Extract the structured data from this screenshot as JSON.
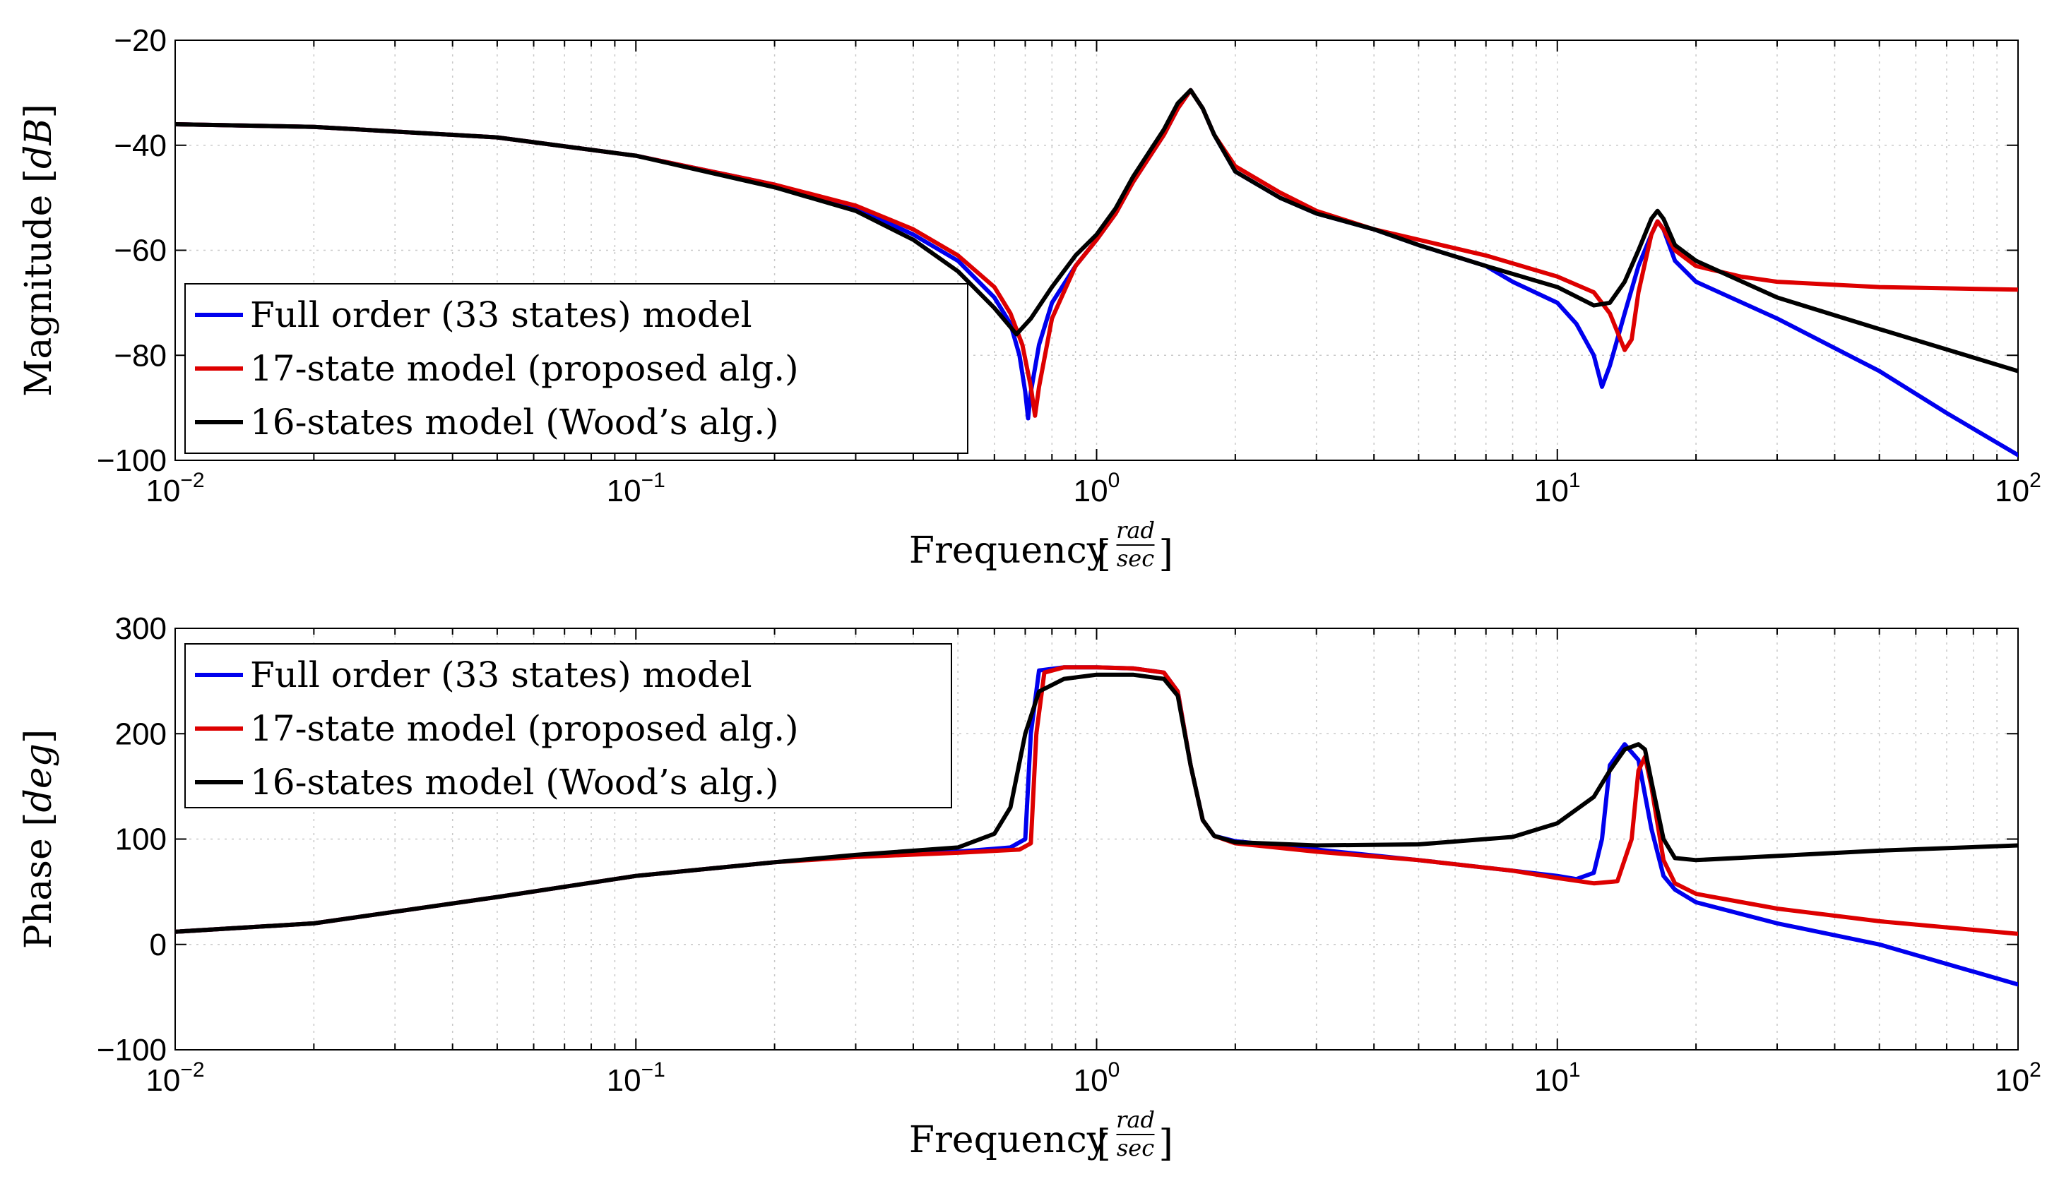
{
  "chart_data": [
    {
      "type": "line",
      "id": "magnitude",
      "xlabel": "Frequency",
      "xunit": {
        "num": "rad",
        "den": "sec"
      },
      "ylabel": "Magnitude",
      "yunit": "dB",
      "xscale": "log",
      "xlim": [
        0.01,
        100
      ],
      "ylim": [
        -100,
        -20
      ],
      "xticks": [
        0.01,
        0.1,
        1,
        10,
        100
      ],
      "xtick_labels": [
        {
          "base": "10",
          "exp": "−2"
        },
        {
          "base": "10",
          "exp": "−1"
        },
        {
          "base": "10",
          "exp": "0"
        },
        {
          "base": "10",
          "exp": "1"
        },
        {
          "base": "10",
          "exp": "2"
        }
      ],
      "yticks": [
        -100,
        -80,
        -60,
        -40,
        -20
      ],
      "ytick_labels": [
        "−100",
        "−80",
        "−60",
        "−40",
        "−20"
      ],
      "grid": true,
      "legend_position": "lower-left",
      "series": [
        {
          "name": "Full order (33 states) model",
          "color": "#0000ee",
          "points": [
            [
              0.01,
              -36
            ],
            [
              0.02,
              -36.5
            ],
            [
              0.05,
              -38.5
            ],
            [
              0.1,
              -42
            ],
            [
              0.2,
              -47.5
            ],
            [
              0.3,
              -52
            ],
            [
              0.4,
              -57
            ],
            [
              0.5,
              -62
            ],
            [
              0.6,
              -69
            ],
            [
              0.65,
              -74
            ],
            [
              0.68,
              -80
            ],
            [
              0.7,
              -87
            ],
            [
              0.71,
              -92
            ],
            [
              0.72,
              -87
            ],
            [
              0.75,
              -78
            ],
            [
              0.8,
              -70
            ],
            [
              0.9,
              -63
            ],
            [
              1.0,
              -58
            ],
            [
              1.1,
              -53
            ],
            [
              1.2,
              -47
            ],
            [
              1.4,
              -38
            ],
            [
              1.5,
              -33
            ],
            [
              1.6,
              -29.5
            ],
            [
              1.7,
              -33
            ],
            [
              1.8,
              -38
            ],
            [
              2.0,
              -45
            ],
            [
              2.5,
              -50
            ],
            [
              3,
              -53
            ],
            [
              4,
              -56
            ],
            [
              5,
              -59
            ],
            [
              7,
              -63
            ],
            [
              8,
              -66
            ],
            [
              10,
              -70
            ],
            [
              11,
              -74
            ],
            [
              12,
              -80
            ],
            [
              12.5,
              -86
            ],
            [
              13,
              -82
            ],
            [
              14,
              -72
            ],
            [
              15,
              -63
            ],
            [
              16,
              -57
            ],
            [
              16.5,
              -54.5
            ],
            [
              17,
              -56
            ],
            [
              18,
              -62
            ],
            [
              20,
              -66
            ],
            [
              30,
              -73
            ],
            [
              50,
              -83
            ],
            [
              70,
              -91
            ],
            [
              100,
              -99
            ]
          ]
        },
        {
          "name": "17-state model (proposed alg.)",
          "color": "#dd0000",
          "points": [
            [
              0.01,
              -36
            ],
            [
              0.02,
              -36.5
            ],
            [
              0.05,
              -38.5
            ],
            [
              0.1,
              -42
            ],
            [
              0.2,
              -47.5
            ],
            [
              0.3,
              -51.5
            ],
            [
              0.4,
              -56
            ],
            [
              0.5,
              -61
            ],
            [
              0.6,
              -67
            ],
            [
              0.65,
              -72
            ],
            [
              0.69,
              -78
            ],
            [
              0.72,
              -86
            ],
            [
              0.735,
              -91.5
            ],
            [
              0.75,
              -86
            ],
            [
              0.8,
              -73
            ],
            [
              0.9,
              -63
            ],
            [
              1.0,
              -58
            ],
            [
              1.1,
              -53
            ],
            [
              1.2,
              -47
            ],
            [
              1.4,
              -38
            ],
            [
              1.5,
              -33
            ],
            [
              1.6,
              -29.5
            ],
            [
              1.7,
              -33
            ],
            [
              1.8,
              -38
            ],
            [
              2.0,
              -44
            ],
            [
              2.5,
              -49
            ],
            [
              3,
              -52.5
            ],
            [
              4,
              -56
            ],
            [
              5,
              -58
            ],
            [
              7,
              -61
            ],
            [
              10,
              -65
            ],
            [
              12,
              -68
            ],
            [
              13,
              -72
            ],
            [
              14,
              -79
            ],
            [
              14.5,
              -77
            ],
            [
              15,
              -68
            ],
            [
              16,
              -57
            ],
            [
              16.5,
              -54.5
            ],
            [
              17,
              -56
            ],
            [
              18,
              -60
            ],
            [
              20,
              -63
            ],
            [
              25,
              -65
            ],
            [
              30,
              -66
            ],
            [
              50,
              -67
            ],
            [
              100,
              -67.5
            ]
          ]
        },
        {
          "name": "16-states model (Wood’s alg.)",
          "color": "#000000",
          "points": [
            [
              0.01,
              -36
            ],
            [
              0.02,
              -36.5
            ],
            [
              0.05,
              -38.5
            ],
            [
              0.1,
              -42
            ],
            [
              0.2,
              -48
            ],
            [
              0.3,
              -52.5
            ],
            [
              0.4,
              -58
            ],
            [
              0.5,
              -64
            ],
            [
              0.6,
              -71
            ],
            [
              0.67,
              -76
            ],
            [
              0.72,
              -73
            ],
            [
              0.8,
              -67
            ],
            [
              0.9,
              -61
            ],
            [
              1.0,
              -57
            ],
            [
              1.1,
              -52
            ],
            [
              1.2,
              -46
            ],
            [
              1.4,
              -37
            ],
            [
              1.5,
              -32
            ],
            [
              1.6,
              -29.5
            ],
            [
              1.7,
              -33
            ],
            [
              1.8,
              -38
            ],
            [
              2.0,
              -45
            ],
            [
              2.5,
              -50
            ],
            [
              3,
              -53
            ],
            [
              4,
              -56
            ],
            [
              5,
              -59
            ],
            [
              7,
              -63
            ],
            [
              10,
              -67
            ],
            [
              12,
              -70.5
            ],
            [
              13,
              -70
            ],
            [
              14,
              -66
            ],
            [
              15,
              -60
            ],
            [
              16,
              -54
            ],
            [
              16.5,
              -52.5
            ],
            [
              17,
              -54
            ],
            [
              18,
              -59
            ],
            [
              20,
              -62
            ],
            [
              30,
              -69
            ],
            [
              50,
              -75
            ],
            [
              100,
              -83
            ]
          ]
        }
      ]
    },
    {
      "type": "line",
      "id": "phase",
      "xlabel": "Frequency",
      "xunit": {
        "num": "rad",
        "den": "sec"
      },
      "ylabel": "Phase",
      "yunit": "deg",
      "xscale": "log",
      "xlim": [
        0.01,
        100
      ],
      "ylim": [
        -100,
        300
      ],
      "xticks": [
        0.01,
        0.1,
        1,
        10,
        100
      ],
      "xtick_labels": [
        {
          "base": "10",
          "exp": "−2"
        },
        {
          "base": "10",
          "exp": "−1"
        },
        {
          "base": "10",
          "exp": "0"
        },
        {
          "base": "10",
          "exp": "1"
        },
        {
          "base": "10",
          "exp": "2"
        }
      ],
      "yticks": [
        -100,
        0,
        100,
        200,
        300
      ],
      "ytick_labels": [
        "−100",
        "0",
        "100",
        "200",
        "300"
      ],
      "grid": true,
      "legend_position": "top-left",
      "series": [
        {
          "name": "Full order (33 states) model",
          "color": "#0000ee",
          "points": [
            [
              0.01,
              12
            ],
            [
              0.02,
              20
            ],
            [
              0.05,
              45
            ],
            [
              0.1,
              65
            ],
            [
              0.2,
              78
            ],
            [
              0.3,
              84
            ],
            [
              0.5,
              88
            ],
            [
              0.65,
              92
            ],
            [
              0.7,
              100
            ],
            [
              0.72,
              200
            ],
            [
              0.75,
              260
            ],
            [
              0.85,
              263
            ],
            [
              1.0,
              263
            ],
            [
              1.2,
              262
            ],
            [
              1.4,
              258
            ],
            [
              1.5,
              240
            ],
            [
              1.6,
              170
            ],
            [
              1.7,
              118
            ],
            [
              1.8,
              103
            ],
            [
              2.0,
              98
            ],
            [
              3,
              90
            ],
            [
              5,
              80
            ],
            [
              8,
              70
            ],
            [
              10,
              65
            ],
            [
              11,
              62
            ],
            [
              12,
              68
            ],
            [
              12.5,
              100
            ],
            [
              13,
              170
            ],
            [
              14,
              190
            ],
            [
              15,
              175
            ],
            [
              16,
              110
            ],
            [
              17,
              65
            ],
            [
              18,
              52
            ],
            [
              20,
              40
            ],
            [
              30,
              20
            ],
            [
              50,
              0
            ],
            [
              100,
              -38
            ]
          ]
        },
        {
          "name": "17-state model (proposed alg.)",
          "color": "#dd0000",
          "points": [
            [
              0.01,
              12
            ],
            [
              0.02,
              20
            ],
            [
              0.05,
              45
            ],
            [
              0.1,
              65
            ],
            [
              0.2,
              78
            ],
            [
              0.3,
              83
            ],
            [
              0.5,
              87
            ],
            [
              0.68,
              90
            ],
            [
              0.72,
              96
            ],
            [
              0.74,
              200
            ],
            [
              0.77,
              258
            ],
            [
              0.85,
              263
            ],
            [
              1.0,
              263
            ],
            [
              1.2,
              262
            ],
            [
              1.4,
              258
            ],
            [
              1.5,
              240
            ],
            [
              1.6,
              170
            ],
            [
              1.7,
              118
            ],
            [
              1.8,
              103
            ],
            [
              2.0,
              96
            ],
            [
              3,
              88
            ],
            [
              5,
              80
            ],
            [
              8,
              70
            ],
            [
              10,
              63
            ],
            [
              12,
              58
            ],
            [
              13.5,
              60
            ],
            [
              14.5,
              100
            ],
            [
              15,
              165
            ],
            [
              15.5,
              178
            ],
            [
              16,
              150
            ],
            [
              17,
              80
            ],
            [
              18,
              58
            ],
            [
              20,
              48
            ],
            [
              30,
              34
            ],
            [
              50,
              22
            ],
            [
              100,
              10
            ]
          ]
        },
        {
          "name": "16-states model (Wood’s alg.)",
          "color": "#000000",
          "points": [
            [
              0.01,
              12
            ],
            [
              0.02,
              20
            ],
            [
              0.05,
              45
            ],
            [
              0.1,
              65
            ],
            [
              0.2,
              78
            ],
            [
              0.3,
              85
            ],
            [
              0.5,
              92
            ],
            [
              0.6,
              105
            ],
            [
              0.65,
              130
            ],
            [
              0.7,
              200
            ],
            [
              0.75,
              240
            ],
            [
              0.85,
              252
            ],
            [
              1.0,
              256
            ],
            [
              1.2,
              256
            ],
            [
              1.4,
              252
            ],
            [
              1.5,
              236
            ],
            [
              1.6,
              170
            ],
            [
              1.7,
              118
            ],
            [
              1.8,
              103
            ],
            [
              2.0,
              97
            ],
            [
              3,
              94
            ],
            [
              5,
              95
            ],
            [
              8,
              102
            ],
            [
              10,
              115
            ],
            [
              12,
              140
            ],
            [
              13,
              165
            ],
            [
              14,
              185
            ],
            [
              15,
              190
            ],
            [
              15.5,
              185
            ],
            [
              16,
              155
            ],
            [
              17,
              100
            ],
            [
              18,
              82
            ],
            [
              20,
              80
            ],
            [
              30,
              84
            ],
            [
              50,
              89
            ],
            [
              100,
              94
            ]
          ]
        }
      ]
    }
  ]
}
